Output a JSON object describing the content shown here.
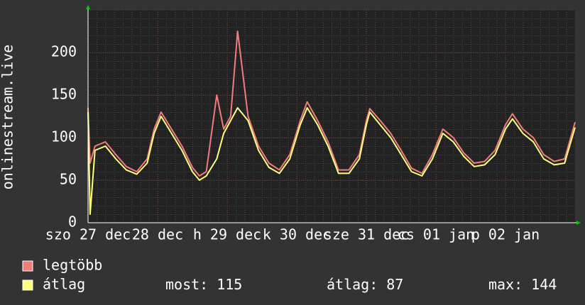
{
  "chart_data": {
    "type": "line",
    "y_axis_label": "onlinestream.live",
    "xlim": [
      0,
      7
    ],
    "xticks": [
      {
        "value": 0,
        "label": "szo 27 dec"
      },
      {
        "value": 1,
        "label": "28 dec"
      },
      {
        "value": 2,
        "label": "h 29 dec"
      },
      {
        "value": 3,
        "label": "k 30 dec"
      },
      {
        "value": 4,
        "label": "sze 31 dec"
      },
      {
        "value": 5,
        "label": "cs 01 jan"
      },
      {
        "value": 6,
        "label": "p 02 jan"
      }
    ],
    "ylim": [
      0,
      250
    ],
    "yticks": [
      0,
      50,
      100,
      150,
      200
    ],
    "grid": true,
    "x": [
      0,
      0.03,
      0.1,
      0.25,
      0.4,
      0.55,
      0.7,
      0.85,
      0.95,
      1.05,
      1.2,
      1.35,
      1.5,
      1.6,
      1.7,
      1.85,
      1.95,
      2.05,
      2.15,
      2.3,
      2.45,
      2.6,
      2.75,
      2.9,
      3.05,
      3.15,
      3.3,
      3.45,
      3.6,
      3.75,
      3.9,
      4.0,
      4.05,
      4.2,
      4.35,
      4.5,
      4.65,
      4.8,
      4.95,
      5.1,
      5.25,
      5.4,
      5.55,
      5.7,
      5.85,
      6.0,
      6.1,
      6.25,
      6.4,
      6.55,
      6.7,
      6.85,
      7.0
    ],
    "series": [
      {
        "name": "legtöbb",
        "color": "#f07c7c",
        "values": [
          135,
          70,
          90,
          95,
          80,
          66,
          60,
          75,
          110,
          130,
          110,
          90,
          65,
          55,
          60,
          150,
          110,
          125,
          225,
          125,
          90,
          70,
          62,
          80,
          120,
          142,
          120,
          95,
          62,
          62,
          80,
          120,
          134,
          120,
          105,
          85,
          64,
          58,
          80,
          110,
          100,
          82,
          70,
          72,
          85,
          115,
          128,
          110,
          100,
          80,
          72,
          75,
          118
        ]
      },
      {
        "name": "átlag",
        "color": "#ffff80",
        "values": [
          130,
          10,
          85,
          90,
          75,
          62,
          57,
          70,
          105,
          125,
          105,
          85,
          60,
          50,
          55,
          75,
          105,
          120,
          135,
          120,
          85,
          65,
          58,
          75,
          115,
          135,
          115,
          90,
          58,
          58,
          75,
          115,
          130,
          115,
          100,
          80,
          60,
          55,
          75,
          105,
          95,
          78,
          66,
          68,
          80,
          110,
          122,
          105,
          95,
          75,
          68,
          70,
          112
        ]
      }
    ],
    "stats": [
      {
        "label": "most:",
        "value": 115
      },
      {
        "label": "átlag:",
        "value": 87
      },
      {
        "label": "max:",
        "value": 144
      }
    ]
  }
}
